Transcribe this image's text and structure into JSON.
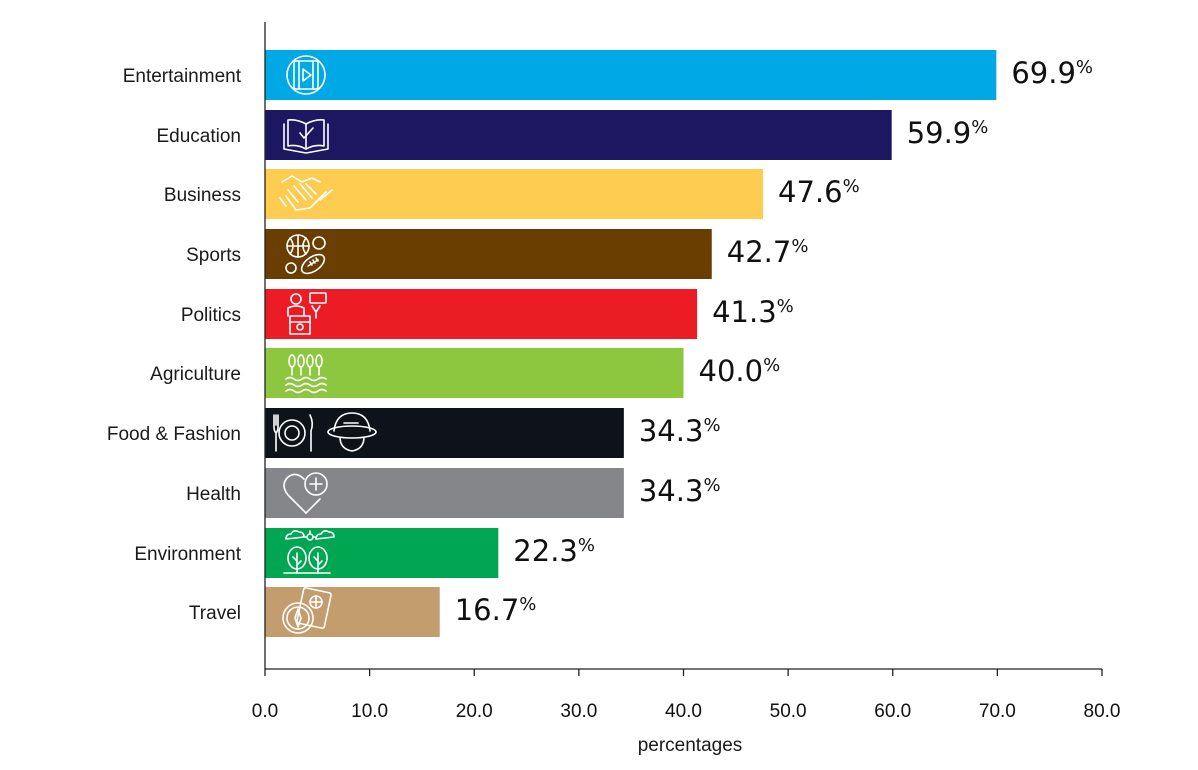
{
  "chart_data": {
    "type": "bar",
    "orientation": "horizontal",
    "title": "",
    "xlabel": "percentages",
    "ylabel": "",
    "xlim": [
      0,
      80
    ],
    "x_ticks": [
      "0.0",
      "10.0",
      "20.0",
      "30.0",
      "40.0",
      "50.0",
      "60.0",
      "70.0",
      "80.0"
    ],
    "grid": false,
    "legend": "none",
    "value_suffix": "%",
    "categories": [
      "Entertainment",
      "Education",
      "Business",
      "Sports",
      "Politics",
      "Agriculture",
      "Food & Fashion",
      "Health",
      "Environment",
      "Travel"
    ],
    "values": [
      69.9,
      59.9,
      47.6,
      42.7,
      41.3,
      40.0,
      34.3,
      34.3,
      22.3,
      16.7
    ],
    "value_labels": [
      "69.9",
      "59.9",
      "47.6",
      "42.7",
      "41.3",
      "40.0",
      "34.3",
      "34.3",
      "22.3",
      "16.7"
    ],
    "colors": [
      "#00a8e6",
      "#1c1760",
      "#fecc50",
      "#6a3d00",
      "#ec1c24",
      "#8dc63f",
      "#0d1319",
      "#858689",
      "#00a651",
      "#c49d6e"
    ],
    "icons": [
      "video-play-icon",
      "book-check-icon",
      "handshake-icon",
      "sports-balls-icon",
      "podium-speaker-icon",
      "crops-field-icon",
      "plate-cutlery-and-hat-icon",
      "heart-plus-icon",
      "trees-weather-icon",
      "passport-compass-icon"
    ]
  }
}
